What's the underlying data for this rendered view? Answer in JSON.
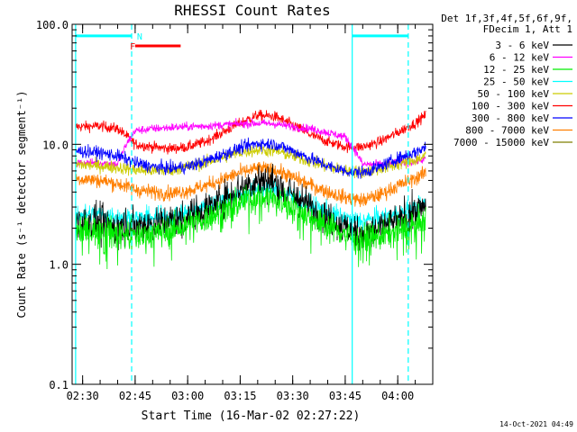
{
  "chart_data": {
    "type": "line",
    "title": "RHESSI Count Rates",
    "xlabel": "Start Time (16-Mar-02 02:27:22)",
    "ylabel": "Count Rate (s⁻¹ detector segment⁻¹)",
    "y_scale": "log",
    "ylim": [
      0.1,
      100.0
    ],
    "xlim": [
      "02:27:00",
      "04:10:00"
    ],
    "x_ticks": [
      "02:30",
      "02:45",
      "03:00",
      "03:15",
      "03:30",
      "03:45",
      "04:00"
    ],
    "y_ticks": [
      "0.1",
      "1.0",
      "10.0",
      "100.0"
    ],
    "grid": false,
    "legend_placement": "right",
    "legend_header": [
      "Det 1f,3f,4f,5f,6f,9f,",
      "FDecim 1, Att 1"
    ],
    "series": [
      {
        "name": "3 - 6 keV",
        "color": "#000000",
        "x": [
          "02:28",
          "02:35",
          "02:40",
          "02:45",
          "02:50",
          "02:55",
          "03:00",
          "03:05",
          "03:10",
          "03:15",
          "03:20",
          "03:25",
          "03:30",
          "03:35",
          "03:40",
          "03:45",
          "03:50",
          "03:55",
          "04:00",
          "04:05",
          "04:08"
        ],
        "y": [
          2.3,
          2.2,
          2.1,
          2.1,
          2.2,
          2.3,
          2.5,
          2.9,
          3.5,
          4.3,
          5.0,
          4.8,
          3.8,
          3.0,
          2.4,
          2.0,
          1.8,
          2.0,
          2.3,
          2.7,
          3.2
        ]
      },
      {
        "name": "6 - 12 keV",
        "color": "#ff00ff",
        "x": [
          "02:28",
          "02:35",
          "02:40",
          "02:45",
          "02:50",
          "02:55",
          "03:00",
          "03:05",
          "03:10",
          "03:15",
          "03:20",
          "03:25",
          "03:30",
          "03:35",
          "03:40",
          "03:45",
          "03:50",
          "03:55",
          "04:00",
          "04:05",
          "04:08"
        ],
        "y": [
          7.0,
          7.0,
          6.8,
          13.0,
          13.5,
          13.8,
          14.0,
          14.2,
          14.5,
          14.8,
          15.0,
          14.8,
          14.0,
          13.5,
          12.5,
          11.5,
          6.8,
          6.8,
          7.0,
          7.2,
          7.5
        ]
      },
      {
        "name": "12 - 25 keV",
        "color": "#00ee00",
        "x": [
          "02:28",
          "02:35",
          "02:40",
          "02:45",
          "02:50",
          "02:55",
          "03:00",
          "03:05",
          "03:10",
          "03:15",
          "03:20",
          "03:25",
          "03:30",
          "03:35",
          "03:40",
          "03:45",
          "03:50",
          "03:55",
          "04:00",
          "04:05",
          "04:08"
        ],
        "y": [
          1.9,
          1.9,
          1.8,
          1.7,
          1.8,
          1.9,
          2.1,
          2.4,
          2.8,
          3.3,
          3.6,
          3.5,
          3.0,
          2.5,
          2.1,
          1.8,
          1.6,
          1.7,
          1.9,
          2.1,
          2.3
        ]
      },
      {
        "name": "25 - 50 keV",
        "color": "#00ffff",
        "x": [
          "02:28",
          "02:35",
          "02:40",
          "02:45",
          "02:50",
          "02:55",
          "03:00",
          "03:05",
          "03:10",
          "03:15",
          "03:20",
          "03:25",
          "03:30",
          "03:35",
          "03:40",
          "03:45",
          "03:50",
          "03:55",
          "04:00",
          "04:05",
          "04:08"
        ],
        "y": [
          2.6,
          2.6,
          2.5,
          2.4,
          2.4,
          2.5,
          2.7,
          3.0,
          3.4,
          3.9,
          4.3,
          4.2,
          3.6,
          3.1,
          2.7,
          2.4,
          2.3,
          2.4,
          2.6,
          2.9,
          3.2
        ]
      },
      {
        "name": "50 - 100 keV",
        "color": "#cccc00",
        "x": [
          "02:28",
          "02:35",
          "02:40",
          "02:45",
          "02:50",
          "02:55",
          "03:00",
          "03:05",
          "03:10",
          "03:15",
          "03:20",
          "03:25",
          "03:30",
          "03:35",
          "03:40",
          "03:45",
          "03:50",
          "03:55",
          "04:00",
          "04:05",
          "04:08"
        ],
        "y": [
          6.8,
          6.6,
          6.4,
          6.1,
          6.0,
          6.1,
          6.5,
          7.0,
          7.8,
          8.6,
          9.0,
          8.8,
          8.0,
          7.2,
          6.5,
          6.0,
          5.9,
          6.2,
          6.8,
          7.4,
          8.0
        ]
      },
      {
        "name": "100 - 300 keV",
        "color": "#ff0000",
        "x": [
          "02:28",
          "02:35",
          "02:40",
          "02:45",
          "02:50",
          "02:55",
          "03:00",
          "03:05",
          "03:10",
          "03:15",
          "03:20",
          "03:25",
          "03:30",
          "03:35",
          "03:40",
          "03:45",
          "03:50",
          "03:55",
          "04:00",
          "04:05",
          "04:08"
        ],
        "y": [
          14.0,
          14.2,
          13.5,
          10.0,
          9.5,
          9.2,
          9.5,
          10.5,
          12.5,
          15.0,
          17.5,
          17.0,
          14.5,
          12.0,
          10.5,
          9.5,
          9.5,
          10.5,
          12.5,
          15.0,
          17.5
        ]
      },
      {
        "name": "300 - 800 keV",
        "color": "#0000ff",
        "x": [
          "02:28",
          "02:35",
          "02:40",
          "02:45",
          "02:50",
          "02:55",
          "03:00",
          "03:05",
          "03:10",
          "03:15",
          "03:20",
          "03:25",
          "03:30",
          "03:35",
          "03:40",
          "03:45",
          "03:50",
          "03:55",
          "04:00",
          "04:05",
          "04:08"
        ],
        "y": [
          8.8,
          8.5,
          8.0,
          7.0,
          6.5,
          6.3,
          6.5,
          7.2,
          8.2,
          9.3,
          10.2,
          10.0,
          8.8,
          7.6,
          6.6,
          6.0,
          5.8,
          6.5,
          7.6,
          8.6,
          9.5
        ]
      },
      {
        "name": "800 - 7000 keV",
        "color": "#ff7f00",
        "x": [
          "02:28",
          "02:35",
          "02:40",
          "02:45",
          "02:50",
          "02:55",
          "03:00",
          "03:05",
          "03:10",
          "03:15",
          "03:20",
          "03:25",
          "03:30",
          "03:35",
          "03:40",
          "03:45",
          "03:50",
          "03:55",
          "04:00",
          "04:05",
          "04:08"
        ],
        "y": [
          5.2,
          5.0,
          4.7,
          4.2,
          4.0,
          3.9,
          4.1,
          4.5,
          5.1,
          5.8,
          6.3,
          6.1,
          5.3,
          4.6,
          4.0,
          3.6,
          3.4,
          3.8,
          4.5,
          5.2,
          5.8
        ]
      },
      {
        "name": "7000 - 15000 keV",
        "color": "#7f7f00",
        "x": [],
        "y": []
      }
    ],
    "vertical_lines": [
      {
        "time": "02:28",
        "style": "solid",
        "color": "#00ffff"
      },
      {
        "time": "02:44",
        "style": "dashed",
        "color": "#00ffff"
      },
      {
        "time": "03:47",
        "style": "solid",
        "color": "#00ffff"
      },
      {
        "time": "04:03",
        "style": "dashed",
        "color": "#00ffff"
      }
    ],
    "flag_bars": [
      {
        "label": "",
        "color": "#00ffff",
        "start": "02:28",
        "end": "02:44",
        "level": 80.0
      },
      {
        "label": "N",
        "label_color": "#00ffff",
        "color": "#00ffff",
        "start": "",
        "end": "",
        "level": 80.0,
        "label_time": "02:45"
      },
      {
        "label": "F",
        "label_color": "#ff0000",
        "color": "#ff0000",
        "start": "02:45",
        "end": "02:58",
        "level": 66.0,
        "label_time": "02:43"
      },
      {
        "label": "",
        "color": "#00ffff",
        "start": "03:47",
        "end": "04:03",
        "level": 80.0
      }
    ]
  },
  "footer_timestamp": "14-Oct-2021 04:49"
}
